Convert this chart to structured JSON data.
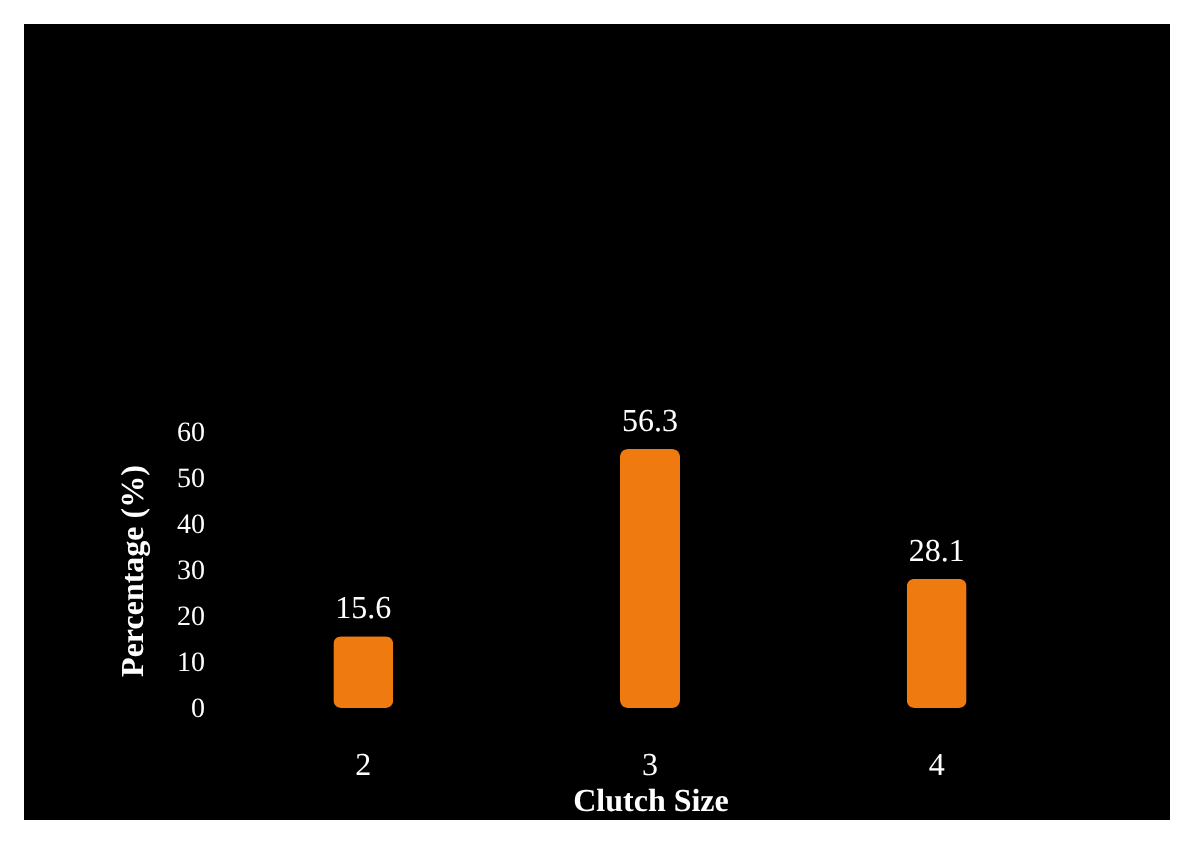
{
  "chart_data": {
    "type": "bar",
    "xlabel": "Clutch Size",
    "ylabel": "Percentage (%)",
    "categories": [
      "2",
      "3",
      "4"
    ],
    "values": [
      15.6,
      56.3,
      28.1
    ],
    "color": "#ee7a10",
    "ylim": [
      0,
      60
    ],
    "yticks": [
      0,
      10,
      20,
      30,
      40,
      50,
      60
    ],
    "grid": false,
    "data_labels": true
  }
}
